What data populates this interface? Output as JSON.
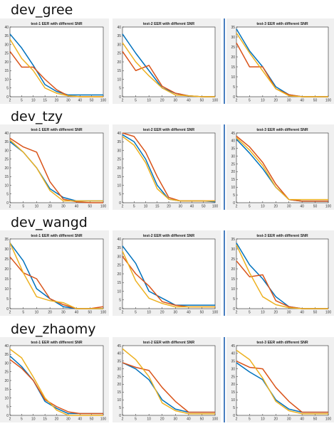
{
  "groups": [
    {
      "title": "dev_gree",
      "charts": [
        {
          "type": "line",
          "title": "test-1 EER with different SNR",
          "x": [
            "2",
            "5",
            "10",
            "15",
            "20",
            "30",
            "40",
            "50",
            "100"
          ],
          "ylim": [
            0,
            40
          ],
          "yticks": [
            0,
            5,
            10,
            15,
            20,
            25,
            30,
            35,
            40
          ],
          "series": [
            {
              "color": "#0072bd",
              "values": [
                36,
                28,
                18,
                7,
                3,
                1,
                1,
                1,
                1
              ]
            },
            {
              "color": "#d95319",
              "values": [
                26,
                17,
                17,
                10,
                4,
                0.5,
                0,
                0,
                0
              ]
            },
            {
              "color": "#edb120",
              "values": [
                33,
                22,
                15,
                5,
                2,
                0.5,
                0,
                0,
                0
              ]
            }
          ]
        },
        {
          "type": "line",
          "title": "test-2 EER with different SNR",
          "x": [
            "2",
            "5",
            "10",
            "20",
            "30",
            "40",
            "50",
            "100"
          ],
          "ylim": [
            0,
            40
          ],
          "yticks": [
            0,
            5,
            10,
            15,
            20,
            25,
            30,
            35,
            40
          ],
          "series": [
            {
              "color": "#0072bd",
              "values": [
                36,
                25,
                15,
                5,
                2,
                0.5,
                0,
                0
              ]
            },
            {
              "color": "#d95319",
              "values": [
                26,
                15,
                18,
                6,
                2,
                0.5,
                0,
                0
              ]
            },
            {
              "color": "#edb120",
              "values": [
                31,
                20,
                12,
                5,
                1,
                0.5,
                0,
                0
              ]
            }
          ]
        },
        {
          "type": "line",
          "title": "test-3 EER with different SNR",
          "x": [
            "2",
            "5",
            "10",
            "20",
            "30",
            "40",
            "50",
            "100"
          ],
          "ylim": [
            0,
            35
          ],
          "yticks": [
            0,
            5,
            10,
            15,
            20,
            25,
            30,
            35
          ],
          "series": [
            {
              "color": "#0072bd",
              "values": [
                34,
                23,
                15,
                5,
                1,
                0,
                0,
                0
              ]
            },
            {
              "color": "#d95319",
              "values": [
                27,
                15,
                15,
                4,
                1,
                0,
                0,
                0
              ]
            },
            {
              "color": "#edb120",
              "values": [
                32,
                22,
                13,
                4,
                0.5,
                0,
                0,
                0
              ]
            }
          ]
        }
      ]
    },
    {
      "title": "dev_tzy",
      "charts": [
        {
          "type": "line",
          "title": "test-1 EER with different SNR",
          "x": [
            "2",
            "5",
            "10",
            "20",
            "30",
            "40",
            "50",
            "100"
          ],
          "ylim": [
            0,
            40
          ],
          "yticks": [
            0,
            5,
            10,
            15,
            20,
            25,
            30,
            35,
            40
          ],
          "series": [
            {
              "color": "#0072bd",
              "values": [
                35,
                29,
                20,
                8,
                3,
                1,
                1,
                1
              ]
            },
            {
              "color": "#d95319",
              "values": [
                37,
                32,
                29,
                12,
                2,
                0.5,
                0,
                0
              ]
            },
            {
              "color": "#edb120",
              "values": [
                36,
                29,
                20,
                7,
                1,
                1,
                1,
                1
              ]
            }
          ]
        },
        {
          "type": "line",
          "title": "test-2 EER with different SNR",
          "x": [
            "2",
            "5",
            "10",
            "15",
            "20",
            "30",
            "40",
            "50",
            "100"
          ],
          "ylim": [
            0,
            40
          ],
          "yticks": [
            0,
            5,
            10,
            15,
            20,
            25,
            30,
            35,
            40
          ],
          "series": [
            {
              "color": "#0072bd",
              "values": [
                39,
                35,
                25,
                10,
                2,
                1,
                1,
                1,
                0.5
              ]
            },
            {
              "color": "#d95319",
              "values": [
                40,
                38,
                29,
                15,
                3,
                1,
                1,
                1,
                1
              ]
            },
            {
              "color": "#edb120",
              "values": [
                38,
                33,
                23,
                8,
                2,
                1,
                1,
                1,
                1
              ]
            }
          ]
        },
        {
          "type": "line",
          "title": "test-3 EER with different SNR",
          "x": [
            "2",
            "5",
            "10",
            "20",
            "30",
            "40",
            "50",
            "100"
          ],
          "ylim": [
            0,
            45
          ],
          "yticks": [
            0,
            5,
            10,
            15,
            20,
            25,
            30,
            35,
            40,
            45
          ],
          "series": [
            {
              "color": "#0072bd",
              "values": [
                41,
                32,
                22,
                10,
                2,
                1,
                1,
                1
              ]
            },
            {
              "color": "#d95319",
              "values": [
                43,
                36,
                26,
                12,
                2,
                1,
                1,
                1
              ]
            },
            {
              "color": "#edb120",
              "values": [
                42,
                34,
                24,
                10,
                2,
                2,
                2,
                2
              ]
            }
          ]
        }
      ]
    },
    {
      "title": "dev_wangd",
      "charts": [
        {
          "type": "line",
          "title": "test-1 EER with different SNR",
          "x": [
            "2",
            "5",
            "10",
            "20",
            "30",
            "40",
            "50",
            "100"
          ],
          "ylim": [
            0,
            35
          ],
          "yticks": [
            0,
            5,
            10,
            15,
            20,
            25,
            30,
            35
          ],
          "series": [
            {
              "color": "#0072bd",
              "values": [
                33,
                24,
                10,
                5,
                1,
                0,
                0,
                0
              ]
            },
            {
              "color": "#d95319",
              "values": [
                26,
                18,
                15,
                5,
                2,
                0,
                0,
                1
              ]
            },
            {
              "color": "#edb120",
              "values": [
                33,
                18,
                6,
                4,
                3,
                0,
                0,
                0
              ]
            }
          ]
        },
        {
          "type": "line",
          "title": "test-2 EER with different SNR",
          "x": [
            "2",
            "5",
            "10",
            "20",
            "30",
            "40",
            "50",
            "100"
          ],
          "ylim": [
            0,
            40
          ],
          "yticks": [
            0,
            5,
            10,
            15,
            20,
            25,
            30,
            35,
            40
          ],
          "series": [
            {
              "color": "#0072bd",
              "values": [
                36,
                26,
                10,
                6,
                2,
                2,
                2,
                2
              ]
            },
            {
              "color": "#d95319",
              "values": [
                30,
                20,
                13,
                4,
                2,
                1,
                1,
                1
              ]
            },
            {
              "color": "#edb120",
              "values": [
                33,
                16,
                6,
                3,
                1,
                1,
                1,
                1
              ]
            }
          ]
        },
        {
          "type": "line",
          "title": "test-3 EER with different SNR",
          "x": [
            "2",
            "5",
            "10",
            "20",
            "30",
            "40",
            "50",
            "100"
          ],
          "ylim": [
            0,
            35
          ],
          "yticks": [
            0,
            5,
            10,
            15,
            20,
            25,
            30,
            35
          ],
          "series": [
            {
              "color": "#0072bd",
              "values": [
                33,
                22,
                15,
                6,
                1,
                0,
                0,
                0
              ]
            },
            {
              "color": "#d95319",
              "values": [
                24,
                16,
                17,
                4,
                1,
                0,
                0,
                0
              ]
            },
            {
              "color": "#edb120",
              "values": [
                32,
                18,
                6,
                2,
                0.5,
                0,
                0,
                0
              ]
            }
          ]
        }
      ]
    },
    {
      "title": "dev_zhaomy",
      "charts": [
        {
          "type": "line",
          "title": "test-1 EER with different SNR",
          "x": [
            "2",
            "5",
            "10",
            "15",
            "20",
            "30",
            "40",
            "50",
            "100"
          ],
          "ylim": [
            0,
            40
          ],
          "yticks": [
            0,
            5,
            10,
            15,
            20,
            25,
            30,
            35,
            40
          ],
          "series": [
            {
              "color": "#0072bd",
              "values": [
                34,
                28,
                20,
                8,
                4,
                1,
                1,
                1,
                1
              ]
            },
            {
              "color": "#d95319",
              "values": [
                32,
                27,
                20,
                9,
                5,
                2,
                1,
                1,
                1
              ]
            },
            {
              "color": "#edb120",
              "values": [
                38,
                33,
                22,
                10,
                3,
                0,
                0,
                0,
                0
              ]
            }
          ]
        },
        {
          "type": "line",
          "title": "test-2 EER with different SNR",
          "x": [
            "2",
            "5",
            "10",
            "20",
            "30",
            "40",
            "50",
            "100"
          ],
          "ylim": [
            0,
            45
          ],
          "yticks": [
            0,
            5,
            10,
            15,
            20,
            25,
            30,
            35,
            40,
            45
          ],
          "series": [
            {
              "color": "#0072bd",
              "values": [
                34,
                30,
                23,
                10,
                4,
                2,
                2,
                2
              ]
            },
            {
              "color": "#d95319",
              "values": [
                34,
                31,
                29,
                18,
                9,
                2,
                2,
                2
              ]
            },
            {
              "color": "#edb120",
              "values": [
                43,
                36,
                25,
                8,
                3,
                1,
                1,
                1
              ]
            }
          ]
        },
        {
          "type": "line",
          "title": "test-3 EER with different SNR",
          "x": [
            "2",
            "5",
            "10",
            "20",
            "30",
            "40",
            "50",
            "100"
          ],
          "ylim": [
            0,
            45
          ],
          "yticks": [
            0,
            5,
            10,
            15,
            20,
            25,
            30,
            35,
            40,
            45
          ],
          "series": [
            {
              "color": "#0072bd",
              "values": [
                34,
                28,
                23,
                10,
                4,
                2,
                2,
                2
              ]
            },
            {
              "color": "#d95319",
              "values": [
                35,
                31,
                30,
                18,
                9,
                2,
                2,
                2
              ]
            },
            {
              "color": "#edb120",
              "values": [
                42,
                36,
                24,
                9,
                3,
                1,
                1,
                1
              ]
            }
          ]
        }
      ]
    }
  ]
}
